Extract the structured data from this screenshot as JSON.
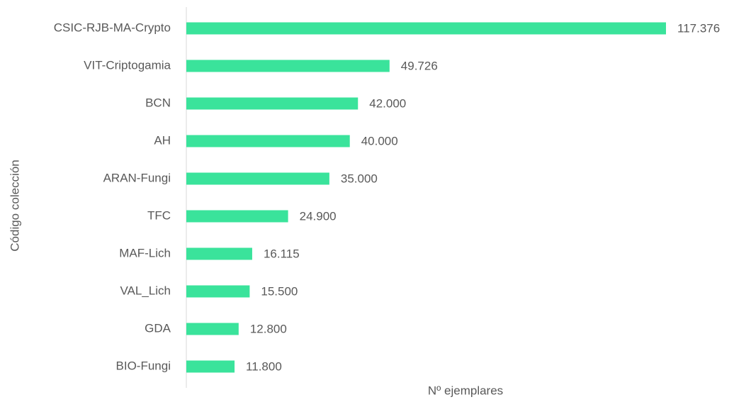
{
  "chart_data": {
    "type": "bar",
    "orientation": "horizontal",
    "categories": [
      "CSIC-RJB-MA-Crypto",
      "VIT-Criptogamia",
      "BCN",
      "AH",
      "ARAN-Fungi",
      "TFC",
      "MAF-Lich",
      "VAL_Lich",
      "GDA",
      "BIO-Fungi"
    ],
    "values": [
      117376,
      49726,
      42000,
      40000,
      35000,
      24900,
      16115,
      15500,
      12800,
      11800
    ],
    "value_labels": [
      "117.376",
      "49.726",
      "42.000",
      "40.000",
      "35.000",
      "24.900",
      "16.115",
      "15.500",
      "12.800",
      "11.800"
    ],
    "color": "#3ae39b",
    "x_label": "Nº ejemplares",
    "y_label": "Código colección"
  }
}
